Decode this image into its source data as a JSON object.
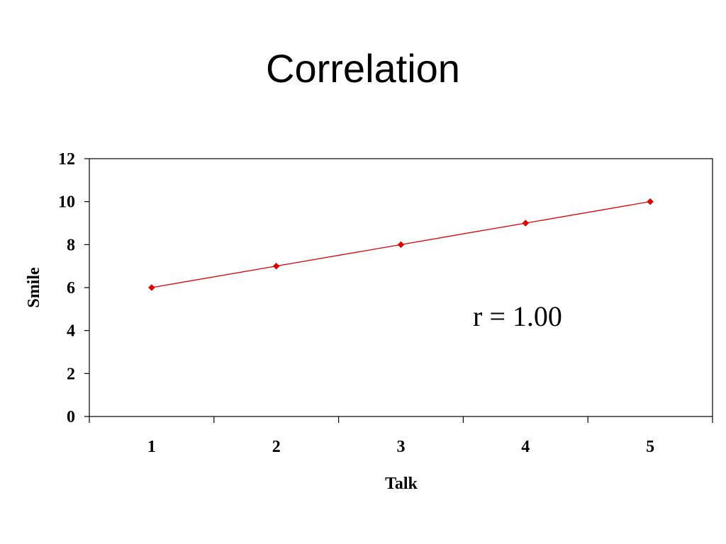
{
  "slide": {
    "title": "Correlation"
  },
  "chart_data": {
    "type": "line",
    "title": "",
    "xlabel": "Talk",
    "ylabel": "Smile",
    "categories": [
      "1",
      "2",
      "3",
      "4",
      "5"
    ],
    "series": [
      {
        "values": [
          6,
          7,
          8,
          9,
          10
        ],
        "color": "#e00000",
        "marker": "diamond"
      }
    ],
    "ylim": [
      0,
      12
    ],
    "yticks": [
      0,
      2,
      4,
      6,
      8,
      10,
      12
    ],
    "grid": false,
    "legend": "none",
    "annotation": "r = 1.00"
  }
}
